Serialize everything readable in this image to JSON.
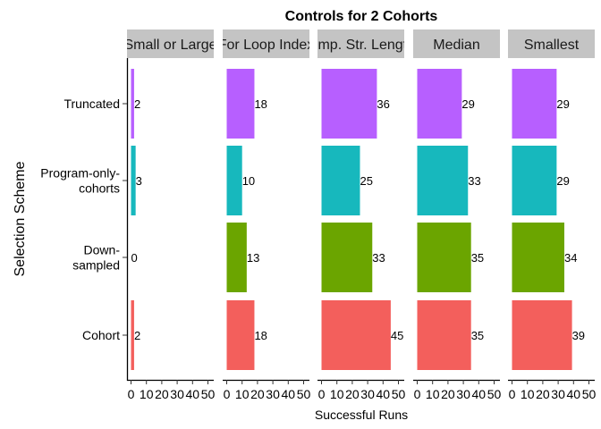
{
  "chart_data": {
    "type": "bar",
    "orientation": "horizontal",
    "title": "Controls for 2 Cohorts",
    "xlabel": "Successful Runs",
    "ylabel": "Selection Scheme",
    "xlim": [
      0,
      50
    ],
    "x_ticks": [
      "0",
      "10",
      "20",
      "30",
      "40",
      "50"
    ],
    "grid": false,
    "legend": "none",
    "categories": [
      "Truncated",
      "Program-only-cohorts",
      "Down-sampled",
      "Cohort"
    ],
    "category_lines": [
      [
        "Truncated"
      ],
      [
        "Program-only-",
        "cohorts"
      ],
      [
        "Down-",
        "sampled"
      ],
      [
        "Cohort"
      ]
    ],
    "category_colors": [
      "#b75fff",
      "#17b8bd",
      "#6ba500",
      "#f35f5c"
    ],
    "panels": [
      {
        "label": "Small or Large",
        "values": [
          2,
          3,
          0,
          2
        ]
      },
      {
        "label": "For Loop Index",
        "values": [
          18,
          10,
          13,
          18
        ]
      },
      {
        "label": "Comp. Str. Lengths",
        "values": [
          36,
          25,
          33,
          45
        ]
      },
      {
        "label": "Median",
        "values": [
          29,
          33,
          35,
          35
        ]
      },
      {
        "label": "Smallest",
        "values": [
          29,
          29,
          34,
          39
        ]
      }
    ]
  }
}
